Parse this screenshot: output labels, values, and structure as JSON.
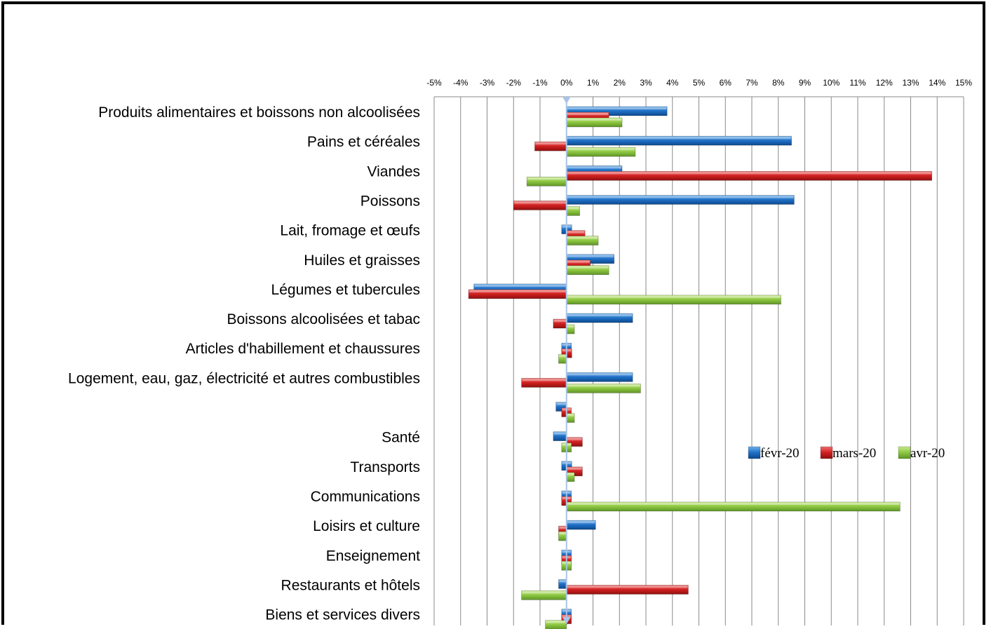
{
  "chart_data": {
    "type": "bar",
    "orientation": "horizontal",
    "title": "",
    "xlabel": "",
    "ylabel": "",
    "xlim": [
      -5,
      15
    ],
    "x_ticks": [
      "-5%",
      "-4%",
      "-3%",
      "-2%",
      "-1%",
      "0%",
      "1%",
      "2%",
      "3%",
      "4%",
      "5%",
      "6%",
      "7%",
      "8%",
      "9%",
      "10%",
      "11%",
      "12%",
      "13%",
      "14%",
      "15%"
    ],
    "grid": true,
    "legend_position": "right",
    "categories": [
      "Produits alimentaires et boissons non alcoolisées",
      "Pains et céréales ",
      "Viandes",
      "Poissons",
      "Lait, fromage et œufs",
      "Huiles et graisses",
      "Légumes et tubercules",
      "Boissons alcoolisées et tabac",
      "Articles d'habillement et chaussures",
      "Logement, eau, gaz, électricité et autres combustibles ",
      "",
      "Santé",
      "Transports",
      "Communications",
      "Loisirs et culture",
      "Enseignement",
      "Restaurants et hôtels",
      "Biens et services divers"
    ],
    "series": [
      {
        "name": "févr-20",
        "color": "#1f6fc5",
        "values": [
          3.8,
          8.5,
          2.1,
          8.6,
          0.2,
          1.8,
          -3.5,
          2.5,
          0.0,
          2.5,
          -0.4,
          -0.5,
          0.2,
          0.0,
          1.1,
          0.0,
          -0.3,
          0.0
        ]
      },
      {
        "name": "mars-20",
        "color": "#d01f1f",
        "values": [
          1.6,
          -1.2,
          13.8,
          -2.0,
          0.7,
          0.9,
          -3.7,
          -0.5,
          0.2,
          -1.7,
          0.0,
          0.6,
          0.6,
          0.0,
          -0.3,
          0.0,
          4.6,
          0.0
        ]
      },
      {
        "name": "avr-20",
        "color": "#8cc63f",
        "values": [
          2.1,
          2.6,
          -1.5,
          0.5,
          1.2,
          1.6,
          8.1,
          0.3,
          -0.3,
          2.8,
          0.3,
          0.0,
          0.3,
          12.6,
          -0.3,
          0.0,
          -1.7,
          -0.8
        ]
      }
    ]
  }
}
